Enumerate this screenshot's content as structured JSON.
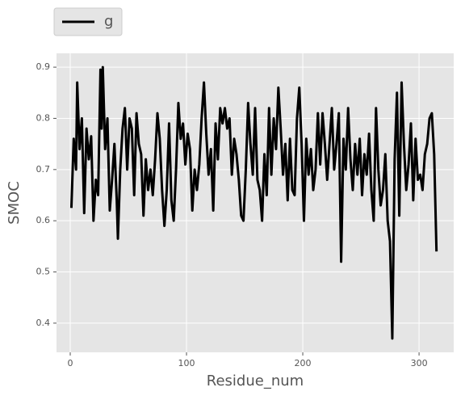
{
  "chart_data": {
    "type": "line",
    "xlabel": "Residue_num",
    "ylabel": "SMOC",
    "series": [
      {
        "name": "g",
        "color": "#000000",
        "x": [
          1,
          3,
          5,
          6,
          8,
          10,
          12,
          14,
          16,
          18,
          20,
          22,
          24,
          26,
          27,
          28,
          30,
          32,
          34,
          36,
          38,
          40,
          41,
          43,
          45,
          47,
          49,
          51,
          53,
          55,
          57,
          59,
          61,
          63,
          65,
          67,
          69,
          71,
          73,
          75,
          77,
          79,
          81,
          83,
          85,
          87,
          89,
          91,
          93,
          95,
          97,
          99,
          101,
          103,
          105,
          107,
          109,
          111,
          113,
          115,
          117,
          119,
          121,
          123,
          125,
          127,
          129,
          131,
          133,
          135,
          137,
          139,
          141,
          143,
          145,
          147,
          149,
          151,
          153,
          155,
          157,
          159,
          161,
          163,
          165,
          167,
          169,
          171,
          173,
          175,
          177,
          179,
          181,
          183,
          185,
          187,
          189,
          191,
          193,
          195,
          197,
          199,
          201,
          203,
          205,
          207,
          209,
          211,
          213,
          215,
          217,
          219,
          221,
          223,
          225,
          227,
          229,
          231,
          233,
          235,
          237,
          239,
          241,
          243,
          245,
          247,
          249,
          251,
          253,
          255,
          257,
          259,
          261,
          263,
          265,
          267,
          269,
          271,
          273,
          275,
          277,
          279,
          281,
          283,
          285,
          287,
          289,
          291,
          293,
          295,
          297,
          299,
          301,
          303,
          305,
          307,
          309,
          311,
          313,
          315
        ],
        "values": [
          0.625,
          0.76,
          0.7,
          0.87,
          0.74,
          0.8,
          0.615,
          0.78,
          0.72,
          0.765,
          0.6,
          0.68,
          0.65,
          0.895,
          0.78,
          0.9,
          0.74,
          0.8,
          0.62,
          0.68,
          0.75,
          0.64,
          0.565,
          0.7,
          0.78,
          0.82,
          0.7,
          0.8,
          0.78,
          0.65,
          0.81,
          0.75,
          0.73,
          0.61,
          0.72,
          0.66,
          0.7,
          0.65,
          0.72,
          0.81,
          0.76,
          0.66,
          0.59,
          0.66,
          0.79,
          0.64,
          0.6,
          0.7,
          0.83,
          0.76,
          0.79,
          0.71,
          0.77,
          0.74,
          0.62,
          0.7,
          0.66,
          0.71,
          0.8,
          0.87,
          0.77,
          0.69,
          0.74,
          0.62,
          0.79,
          0.72,
          0.82,
          0.79,
          0.82,
          0.78,
          0.8,
          0.69,
          0.76,
          0.73,
          0.68,
          0.61,
          0.6,
          0.7,
          0.83,
          0.75,
          0.69,
          0.82,
          0.68,
          0.66,
          0.6,
          0.73,
          0.65,
          0.82,
          0.69,
          0.8,
          0.74,
          0.86,
          0.78,
          0.69,
          0.75,
          0.64,
          0.76,
          0.66,
          0.65,
          0.8,
          0.86,
          0.75,
          0.6,
          0.76,
          0.69,
          0.74,
          0.66,
          0.7,
          0.81,
          0.71,
          0.81,
          0.75,
          0.68,
          0.75,
          0.82,
          0.7,
          0.75,
          0.81,
          0.52,
          0.76,
          0.7,
          0.82,
          0.72,
          0.66,
          0.75,
          0.69,
          0.76,
          0.65,
          0.73,
          0.69,
          0.77,
          0.66,
          0.6,
          0.82,
          0.7,
          0.63,
          0.66,
          0.73,
          0.6,
          0.56,
          0.37,
          0.72,
          0.85,
          0.61,
          0.87,
          0.75,
          0.66,
          0.71,
          0.79,
          0.64,
          0.76,
          0.68,
          0.69,
          0.66,
          0.73,
          0.75,
          0.8,
          0.81,
          0.73,
          0.54
        ]
      }
    ],
    "xlim": [
      -11.8,
      329.8
    ],
    "xticks": [
      0,
      100,
      200,
      300
    ],
    "ylim": [
      0.343,
      0.927
    ],
    "yticks": [
      0.4,
      0.5,
      0.6,
      0.7,
      0.8,
      0.9
    ],
    "grid": true,
    "legend": "upper left"
  }
}
